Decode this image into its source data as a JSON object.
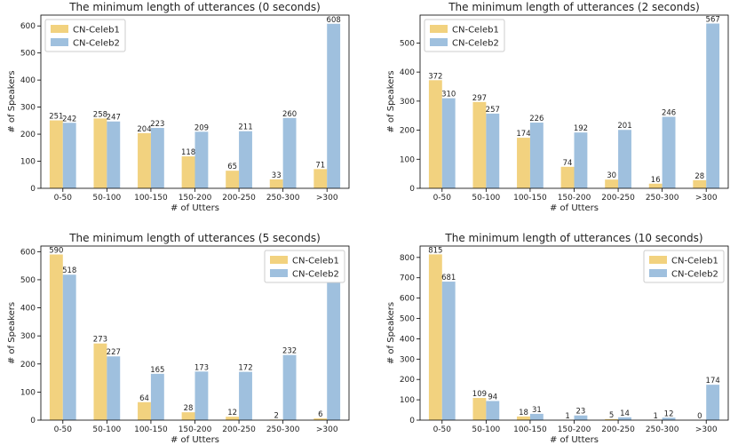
{
  "colors": {
    "series1": "#f2d27f",
    "series2": "#9fc0de"
  },
  "chart_data": [
    {
      "type": "bar",
      "title": "The minimum length of utterances (0 seconds)",
      "xlabel": "# of Utters",
      "ylabel": "# of Speakers",
      "categories": [
        "0-50",
        "50-100",
        "100-150",
        "150-200",
        "200-250",
        "250-300",
        ">300"
      ],
      "ylim": [
        0,
        640
      ],
      "yticks": [
        0,
        100,
        200,
        300,
        400,
        500,
        600
      ],
      "legend_position": "top-left",
      "series": [
        {
          "name": "CN-Celeb1",
          "values": [
            251,
            258,
            204,
            118,
            65,
            33,
            71
          ]
        },
        {
          "name": "CN-Celeb2",
          "values": [
            242,
            247,
            223,
            209,
            211,
            260,
            608
          ]
        }
      ]
    },
    {
      "type": "bar",
      "title": "The minimum length of utterances (2 seconds)",
      "xlabel": "# of Utters",
      "ylabel": "# of Speakers",
      "categories": [
        "0-50",
        "50-100",
        "100-150",
        "150-200",
        "200-250",
        "250-300",
        ">300"
      ],
      "ylim": [
        0,
        596
      ],
      "yticks": [
        0,
        100,
        200,
        300,
        400,
        500
      ],
      "legend_position": "top-left",
      "series": [
        {
          "name": "CN-Celeb1",
          "values": [
            372,
            297,
            174,
            74,
            30,
            16,
            28
          ]
        },
        {
          "name": "CN-Celeb2",
          "values": [
            310,
            257,
            226,
            192,
            201,
            246,
            567
          ]
        }
      ]
    },
    {
      "type": "bar",
      "title": "The minimum length of utterances (5 seconds)",
      "xlabel": "# of Utters",
      "ylabel": "# of Speakers",
      "categories": [
        "0-50",
        "50-100",
        "100-150",
        "150-200",
        "200-250",
        "250-300",
        ">300"
      ],
      "ylim": [
        0,
        620
      ],
      "yticks": [
        0,
        100,
        200,
        300,
        400,
        500,
        600
      ],
      "legend_position": "top-right",
      "series": [
        {
          "name": "CN-Celeb1",
          "values": [
            590,
            273,
            64,
            28,
            12,
            2,
            6
          ]
        },
        {
          "name": "CN-Celeb2",
          "values": [
            518,
            227,
            165,
            173,
            172,
            232,
            494
          ]
        }
      ]
    },
    {
      "type": "bar",
      "title": "The minimum length of utterances (10 seconds)",
      "xlabel": "# of Utters",
      "ylabel": "# of Speakers",
      "categories": [
        "0-50",
        "50-100",
        "100-150",
        "150-200",
        "200-250",
        "250-300",
        ">300"
      ],
      "ylim": [
        0,
        856
      ],
      "yticks": [
        0,
        100,
        200,
        300,
        400,
        500,
        600,
        700,
        800
      ],
      "legend_position": "top-right",
      "series": [
        {
          "name": "CN-Celeb1",
          "values": [
            815,
            109,
            18,
            1,
            5,
            1,
            0
          ]
        },
        {
          "name": "CN-Celeb2",
          "values": [
            681,
            94,
            31,
            23,
            14,
            12,
            174
          ]
        }
      ]
    }
  ]
}
